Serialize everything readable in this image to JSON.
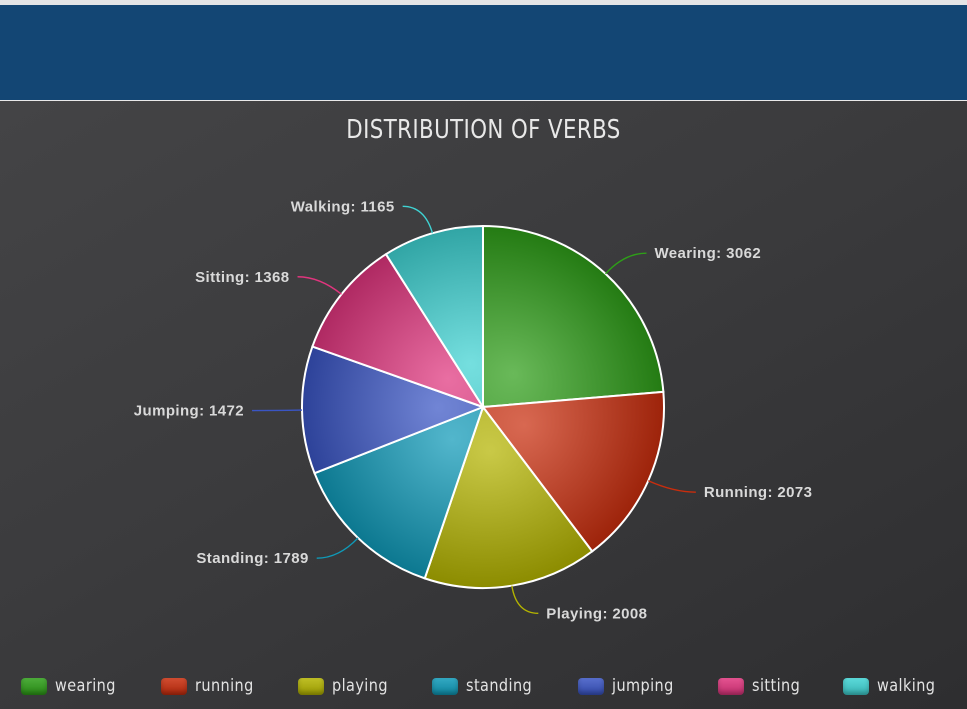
{
  "chart_data": {
    "type": "pie",
    "title": "DISTRIBUTION OF VERBS",
    "slices": [
      {
        "label": "Wearing",
        "value": 3062,
        "color": "#2e9e18",
        "callout": "Wearing: 3062"
      },
      {
        "label": "Running",
        "value": 2073,
        "color": "#c92d0d",
        "callout": "Running: 2073"
      },
      {
        "label": "Playing",
        "value": 2008,
        "color": "#b4b400",
        "callout": "Playing: 2008"
      },
      {
        "label": "Standing",
        "value": 1789,
        "color": "#0f9ab8",
        "callout": "Standing: 1789"
      },
      {
        "label": "Jumping",
        "value": 1472,
        "color": "#3a55c4",
        "callout": "Jumping: 1472"
      },
      {
        "label": "Sitting",
        "value": 1368,
        "color": "#e0357e",
        "callout": "Sitting: 1368"
      },
      {
        "label": "Walking",
        "value": 1165,
        "color": "#3fd3d3",
        "callout": "Walking: 1165"
      }
    ],
    "legend_position": "bottom",
    "start_angle": "top, clockwise"
  }
}
